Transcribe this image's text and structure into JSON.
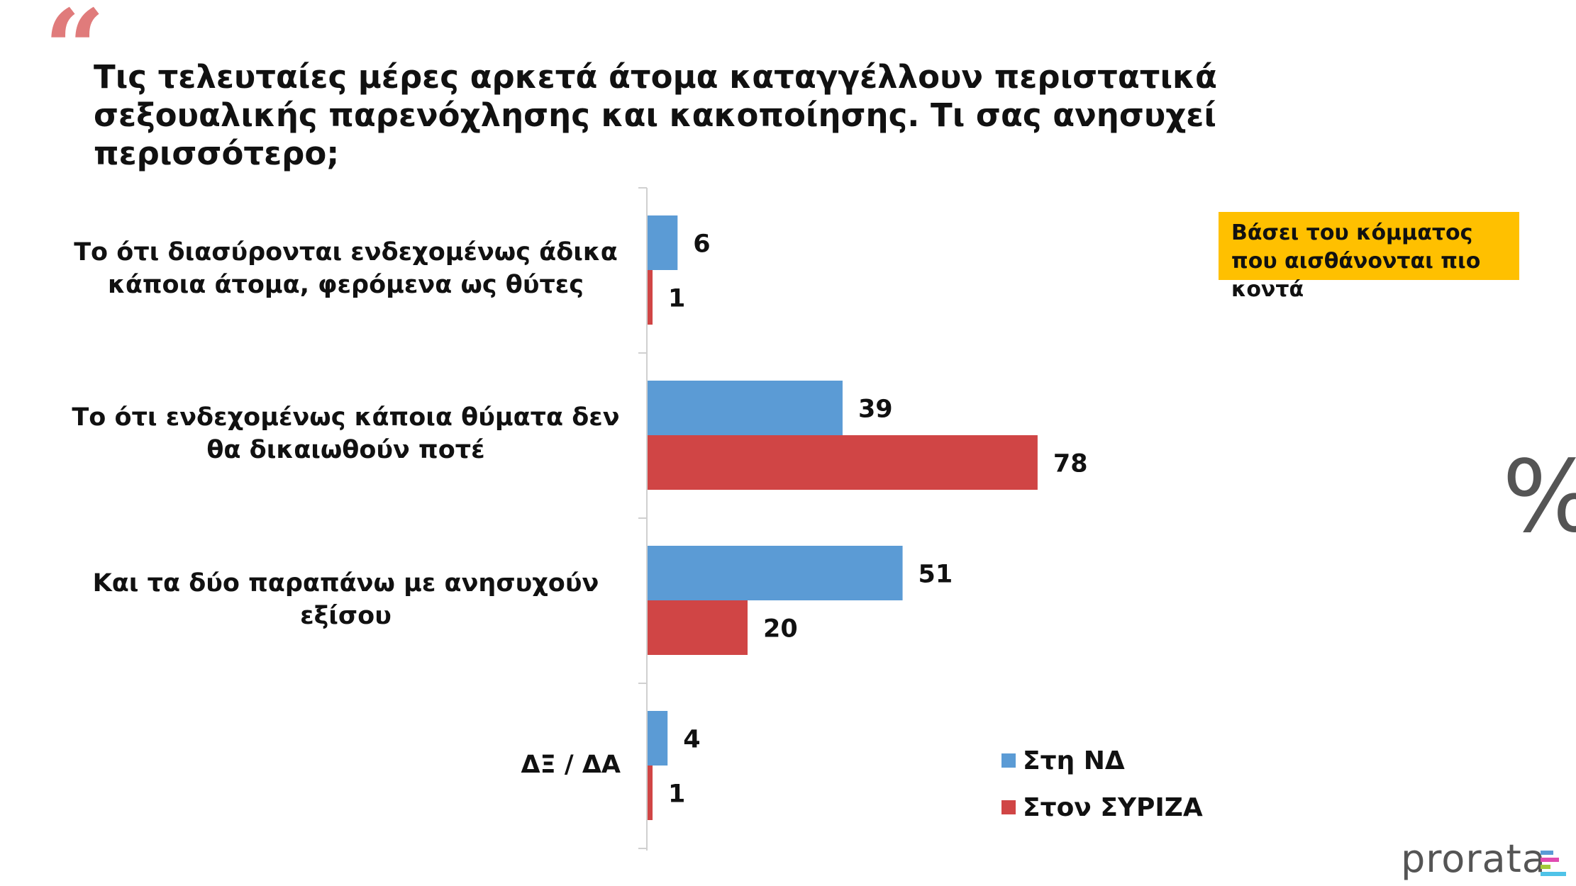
{
  "quote_mark": "“",
  "question": "Τις τελευταίες μέρες αρκετά άτομα καταγγέλλουν περιστατικά σεξουαλικής παρενόχλησης και κακοποίησης. Τι σας ανησυχεί περισσότερο;",
  "note": "Βάσει του κόμματος που αισθάνονται πιο κοντά",
  "percent_sign": "%",
  "logo": "prorata",
  "colors": {
    "series_nd": "#5b9bd5",
    "series_syriza": "#d04545",
    "note_bg": "#ffc000",
    "quote": "#e07b7b"
  },
  "chart_data": {
    "type": "bar",
    "orientation": "horizontal",
    "categories": [
      "Το ότι διασύρονται ενδεχομένως άδικα κάποια άτομα, φερόμενα ως θύτες",
      "Το ότι ενδεχομένως κάποια θύματα δεν θα δικαιωθούν ποτέ",
      "Και τα δύο παραπάνω με ανησυχούν εξίσου",
      "ΔΞ / ΔΑ"
    ],
    "series": [
      {
        "name": "Στη ΝΔ",
        "color": "#5b9bd5",
        "values": [
          6,
          39,
          51,
          4
        ]
      },
      {
        "name": "Στον ΣΥΡΙΖΑ",
        "color": "#d04545",
        "values": [
          1,
          78,
          20,
          1
        ]
      }
    ],
    "xlim": [
      0,
      100
    ],
    "legend": "bottom-right",
    "grid": false
  }
}
